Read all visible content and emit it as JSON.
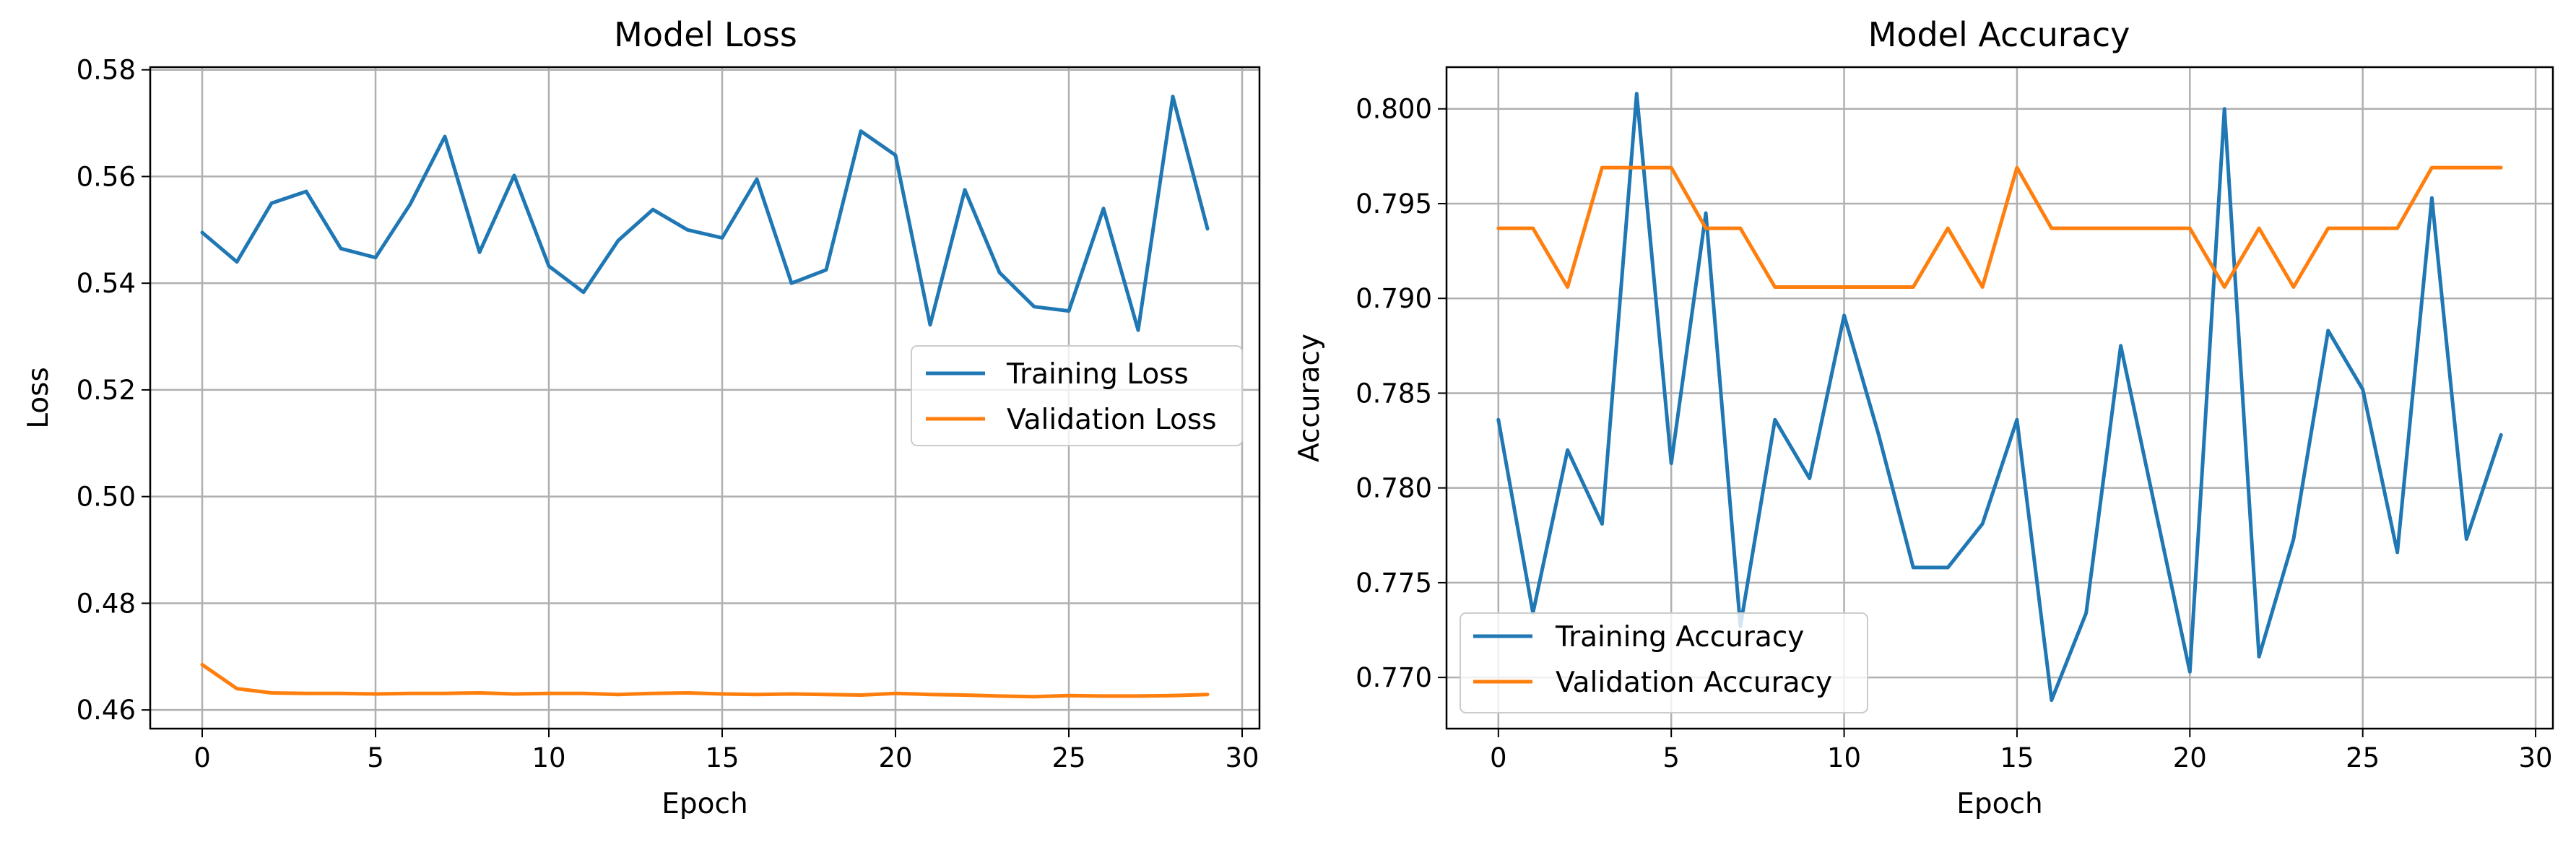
{
  "chart_data": [
    {
      "type": "line",
      "title": "Model Loss",
      "xlabel": "Epoch",
      "ylabel": "Loss",
      "xlim": [
        -1.5,
        30.5
      ],
      "ylim": [
        0.4565,
        0.5805
      ],
      "xticks": [
        0,
        5,
        10,
        15,
        20,
        25,
        30
      ],
      "yticks": [
        0.46,
        0.48,
        0.5,
        0.52,
        0.54,
        0.56,
        0.58
      ],
      "xtick_labels": [
        "0",
        "5",
        "10",
        "15",
        "20",
        "25",
        "30"
      ],
      "ytick_labels": [
        "0.46",
        "0.48",
        "0.50",
        "0.52",
        "0.54",
        "0.56",
        "0.58"
      ],
      "grid": true,
      "legend_position": "center-right",
      "x": [
        0,
        1,
        2,
        3,
        4,
        5,
        6,
        7,
        8,
        9,
        10,
        11,
        12,
        13,
        14,
        15,
        16,
        17,
        18,
        19,
        20,
        21,
        22,
        23,
        24,
        25,
        26,
        27,
        28,
        29
      ],
      "series": [
        {
          "name": "Training Loss",
          "color": "#1f77b4",
          "values": [
            0.5495,
            0.544,
            0.555,
            0.5572,
            0.5465,
            0.5448,
            0.5548,
            0.5675,
            0.5458,
            0.5602,
            0.5432,
            0.5383,
            0.548,
            0.5538,
            0.55,
            0.5485,
            0.5595,
            0.54,
            0.5425,
            0.5685,
            0.564,
            0.5322,
            0.5575,
            0.542,
            0.5356,
            0.5348,
            0.554,
            0.5312,
            0.575,
            0.5502
          ]
        },
        {
          "name": "Validation Loss",
          "color": "#ff7f0e",
          "values": [
            0.4685,
            0.464,
            0.4632,
            0.4631,
            0.4631,
            0.463,
            0.4631,
            0.4631,
            0.4632,
            0.463,
            0.4631,
            0.4631,
            0.4629,
            0.4631,
            0.4632,
            0.463,
            0.4629,
            0.463,
            0.4629,
            0.4628,
            0.4631,
            0.4629,
            0.4628,
            0.4626,
            0.4625,
            0.4627,
            0.4626,
            0.4626,
            0.4627,
            0.4629
          ]
        }
      ]
    },
    {
      "type": "line",
      "title": "Model Accuracy",
      "xlabel": "Epoch",
      "ylabel": "Accuracy",
      "xlim": [
        -1.5,
        30.5
      ],
      "ylim": [
        0.7673,
        0.8022
      ],
      "xticks": [
        0,
        5,
        10,
        15,
        20,
        25,
        30
      ],
      "yticks": [
        0.77,
        0.775,
        0.78,
        0.785,
        0.79,
        0.795,
        0.8
      ],
      "xtick_labels": [
        "0",
        "5",
        "10",
        "15",
        "20",
        "25",
        "30"
      ],
      "ytick_labels": [
        "0.770",
        "0.775",
        "0.780",
        "0.785",
        "0.790",
        "0.795",
        "0.800"
      ],
      "grid": true,
      "legend_position": "lower-left",
      "x": [
        0,
        1,
        2,
        3,
        4,
        5,
        6,
        7,
        8,
        9,
        10,
        11,
        12,
        13,
        14,
        15,
        16,
        17,
        18,
        19,
        20,
        21,
        22,
        23,
        24,
        25,
        26,
        27,
        28,
        29
      ],
      "series": [
        {
          "name": "Training Accuracy",
          "color": "#1f77b4",
          "values": [
            0.7836,
            0.7734,
            0.782,
            0.7781,
            0.8008,
            0.7813,
            0.7945,
            0.7727,
            0.7836,
            0.7805,
            0.7891,
            0.7828,
            0.7758,
            0.7758,
            0.7781,
            0.7836,
            0.7688,
            0.7734,
            0.7875,
            0.7789,
            0.7703,
            0.8,
            0.7711,
            0.7773,
            0.7883,
            0.7852,
            0.7766,
            0.7953,
            0.7773,
            0.7828
          ]
        },
        {
          "name": "Validation Accuracy",
          "color": "#ff7f0e",
          "values": [
            0.7937,
            0.7937,
            0.7906,
            0.7969,
            0.7969,
            0.7969,
            0.7937,
            0.7937,
            0.7906,
            0.7906,
            0.7906,
            0.7906,
            0.7906,
            0.7937,
            0.7906,
            0.7969,
            0.7937,
            0.7937,
            0.7937,
            0.7937,
            0.7937,
            0.7906,
            0.7937,
            0.7906,
            0.7937,
            0.7937,
            0.7937,
            0.7969,
            0.7969,
            0.7969
          ]
        }
      ]
    }
  ]
}
